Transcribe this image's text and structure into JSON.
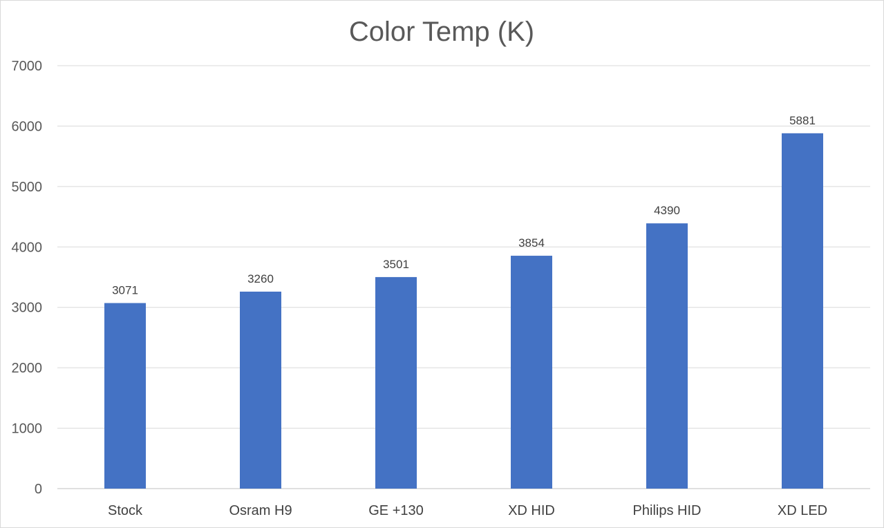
{
  "chart_data": {
    "type": "bar",
    "title": "Color Temp (K)",
    "xlabel": "",
    "ylabel": "",
    "categories": [
      "Stock",
      "Osram H9",
      "GE +130",
      "XD HID",
      "Philips HID",
      "XD LED"
    ],
    "values": [
      3071,
      3260,
      3501,
      3854,
      4390,
      5881
    ],
    "data_labels": [
      "3071",
      "3260",
      "3501",
      "3854",
      "4390",
      "5881"
    ],
    "ylim": [
      0,
      7000
    ],
    "yticks": [
      0,
      1000,
      2000,
      3000,
      4000,
      5000,
      6000,
      7000
    ],
    "ytick_labels": [
      "0",
      "1000",
      "2000",
      "3000",
      "4000",
      "5000",
      "6000",
      "7000"
    ],
    "grid": true,
    "legend": "none",
    "bar_color": "#4472C4"
  }
}
